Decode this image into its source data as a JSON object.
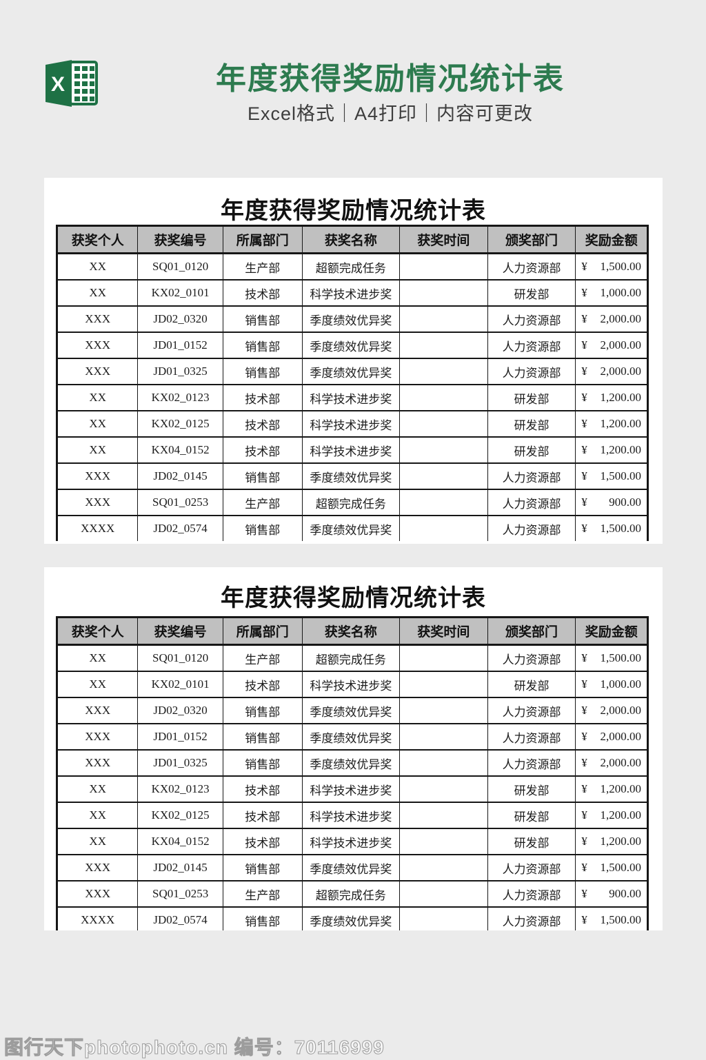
{
  "page": {
    "background_color": "#ebebeb",
    "watermark_text": "图行天下photophoto.cn 编号：70116999"
  },
  "header": {
    "title": "年度获得奖励情况统计表",
    "subtitle": "Excel格式｜A4打印｜内容可更改",
    "title_color": "#2d7b4f",
    "excel_icon_color": "#1e7145",
    "excel_icon_letter": "X"
  },
  "table": {
    "title": "年度获得奖励情况统计表",
    "header_bg": "#c0c0c0",
    "columns": [
      "获奖个人",
      "获奖编号",
      "所属部门",
      "获奖名称",
      "获奖时间",
      "颁奖部门",
      "奖励金额"
    ],
    "column_keys": [
      "person",
      "code",
      "dept",
      "award",
      "time",
      "issuer",
      "amount"
    ],
    "rows": [
      {
        "person": "XX",
        "code": "SQ01_0120",
        "dept": "生产部",
        "award": "超额完成任务",
        "time": "",
        "issuer": "人力资源部",
        "currency": "¥",
        "amount": "1,500.00"
      },
      {
        "person": "XX",
        "code": "KX02_0101",
        "dept": "技术部",
        "award": "科学技术进步奖",
        "time": "",
        "issuer": "研发部",
        "currency": "¥",
        "amount": "1,000.00"
      },
      {
        "person": "XXX",
        "code": "JD02_0320",
        "dept": "销售部",
        "award": "季度绩效优异奖",
        "time": "",
        "issuer": "人力资源部",
        "currency": "¥",
        "amount": "2,000.00"
      },
      {
        "person": "XXX",
        "code": "JD01_0152",
        "dept": "销售部",
        "award": "季度绩效优异奖",
        "time": "",
        "issuer": "人力资源部",
        "currency": "¥",
        "amount": "2,000.00"
      },
      {
        "person": "XXX",
        "code": "JD01_0325",
        "dept": "销售部",
        "award": "季度绩效优异奖",
        "time": "",
        "issuer": "人力资源部",
        "currency": "¥",
        "amount": "2,000.00"
      },
      {
        "person": "XX",
        "code": "KX02_0123",
        "dept": "技术部",
        "award": "科学技术进步奖",
        "time": "",
        "issuer": "研发部",
        "currency": "¥",
        "amount": "1,200.00"
      },
      {
        "person": "XX",
        "code": "KX02_0125",
        "dept": "技术部",
        "award": "科学技术进步奖",
        "time": "",
        "issuer": "研发部",
        "currency": "¥",
        "amount": "1,200.00"
      },
      {
        "person": "XX",
        "code": "KX04_0152",
        "dept": "技术部",
        "award": "科学技术进步奖",
        "time": "",
        "issuer": "研发部",
        "currency": "¥",
        "amount": "1,200.00"
      },
      {
        "person": "XXX",
        "code": "JD02_0145",
        "dept": "销售部",
        "award": "季度绩效优异奖",
        "time": "",
        "issuer": "人力资源部",
        "currency": "¥",
        "amount": "1,500.00"
      },
      {
        "person": "XXX",
        "code": "SQ01_0253",
        "dept": "生产部",
        "award": "超额完成任务",
        "time": "",
        "issuer": "人力资源部",
        "currency": "¥",
        "amount": "900.00"
      },
      {
        "person": "XXXX",
        "code": "JD02_0574",
        "dept": "销售部",
        "award": "季度绩效优异奖",
        "time": "",
        "issuer": "人力资源部",
        "currency": "¥",
        "amount": "1,500.00"
      }
    ],
    "column_widths_pct": [
      13.7,
      14.4,
      13.4,
      16.5,
      14.9,
      14.9,
      12.2
    ]
  }
}
